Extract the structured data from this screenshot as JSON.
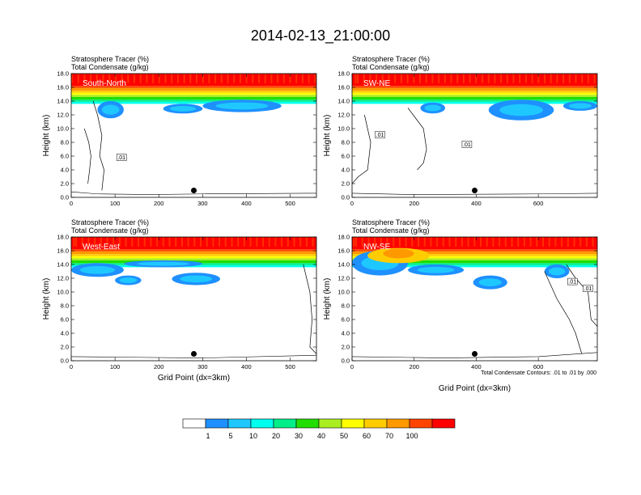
{
  "title": "2014-02-13_21:00:00",
  "legend": {
    "bins": [
      {
        "label": "",
        "color": "#ffffff"
      },
      {
        "label": "1",
        "color": "#1e90ff"
      },
      {
        "label": "5",
        "color": "#1ec8ff"
      },
      {
        "label": "10",
        "color": "#00ffee"
      },
      {
        "label": "20",
        "color": "#00ee88"
      },
      {
        "label": "30",
        "color": "#22dd00"
      },
      {
        "label": "40",
        "color": "#aaee22"
      },
      {
        "label": "50",
        "color": "#ffff00"
      },
      {
        "label": "60",
        "color": "#ffcc00"
      },
      {
        "label": "70",
        "color": "#ff9900"
      },
      {
        "label": "100",
        "color": "#ff4400"
      },
      {
        "label": "",
        "color": "#ff0000"
      }
    ]
  },
  "contour_note": "Total Condensate Contours: .01 to .01 by .000",
  "xlabel": "Grid Point (dx=3km)",
  "chart_data": [
    {
      "type": "heatmap",
      "panel": "South-North",
      "title_line1": "Stratosphere Tracer   (%)",
      "title_line2": "Total Condensate   (g/kg)",
      "ylabel": "Height (km)",
      "xlabel": "",
      "xlim": [
        0,
        560
      ],
      "ylim": [
        0,
        18
      ],
      "xticks": [
        0,
        100,
        200,
        300,
        400,
        500
      ],
      "yticks": [
        "0.0",
        "2.0",
        "4.0",
        "6.0",
        "8.0",
        "10.0",
        "12.0",
        "14.0",
        "16.0",
        "18.0"
      ],
      "contour_labels": [
        ".01"
      ],
      "marker_x": 280,
      "show_xlabel": false
    },
    {
      "type": "heatmap",
      "panel": "SW-NE",
      "title_line1": "Stratosphere Tracer   (%)",
      "title_line2": "Total Condensate   (g/kg)",
      "ylabel": "Height (km)",
      "xlim": [
        0,
        790
      ],
      "ylim": [
        0,
        18
      ],
      "xticks": [
        0,
        200,
        400,
        600
      ],
      "yticks": [
        "0.0",
        "2.0",
        "4.0",
        "6.0",
        "8.0",
        "10.0",
        "12.0",
        "14.0",
        "16.0",
        "18.0"
      ],
      "contour_labels": [
        ".01",
        ".01"
      ],
      "marker_x": 395,
      "show_xlabel": false
    },
    {
      "type": "heatmap",
      "panel": "West-East",
      "title_line1": "Stratosphere Tracer   (%)",
      "title_line2": "Total Condensate   (g/kg)",
      "ylabel": "Height (km)",
      "xlim": [
        0,
        560
      ],
      "ylim": [
        0,
        18
      ],
      "xticks": [
        0,
        100,
        200,
        300,
        400,
        500
      ],
      "yticks": [
        "0.0",
        "2.0",
        "4.0",
        "6.0",
        "8.0",
        "10.0",
        "12.0",
        "14.0",
        "16.0",
        "18.0"
      ],
      "contour_labels": [],
      "marker_x": 280,
      "show_xlabel": true
    },
    {
      "type": "heatmap",
      "panel": "NW-SE",
      "title_line1": "Stratosphere Tracer   (%)",
      "title_line2": "Total Condensate   (g/kg)",
      "ylabel": "Height (km)",
      "xlim": [
        0,
        790
      ],
      "ylim": [
        0,
        18
      ],
      "xticks": [
        0,
        200,
        400,
        600
      ],
      "yticks": [
        "0.0",
        "2.0",
        "4.0",
        "6.0",
        "8.0",
        "10.0",
        "12.0",
        "14.0",
        "16.0",
        "18.0"
      ],
      "contour_labels": [
        ".01",
        ".01"
      ],
      "marker_x": 395,
      "show_xlabel": true
    }
  ]
}
